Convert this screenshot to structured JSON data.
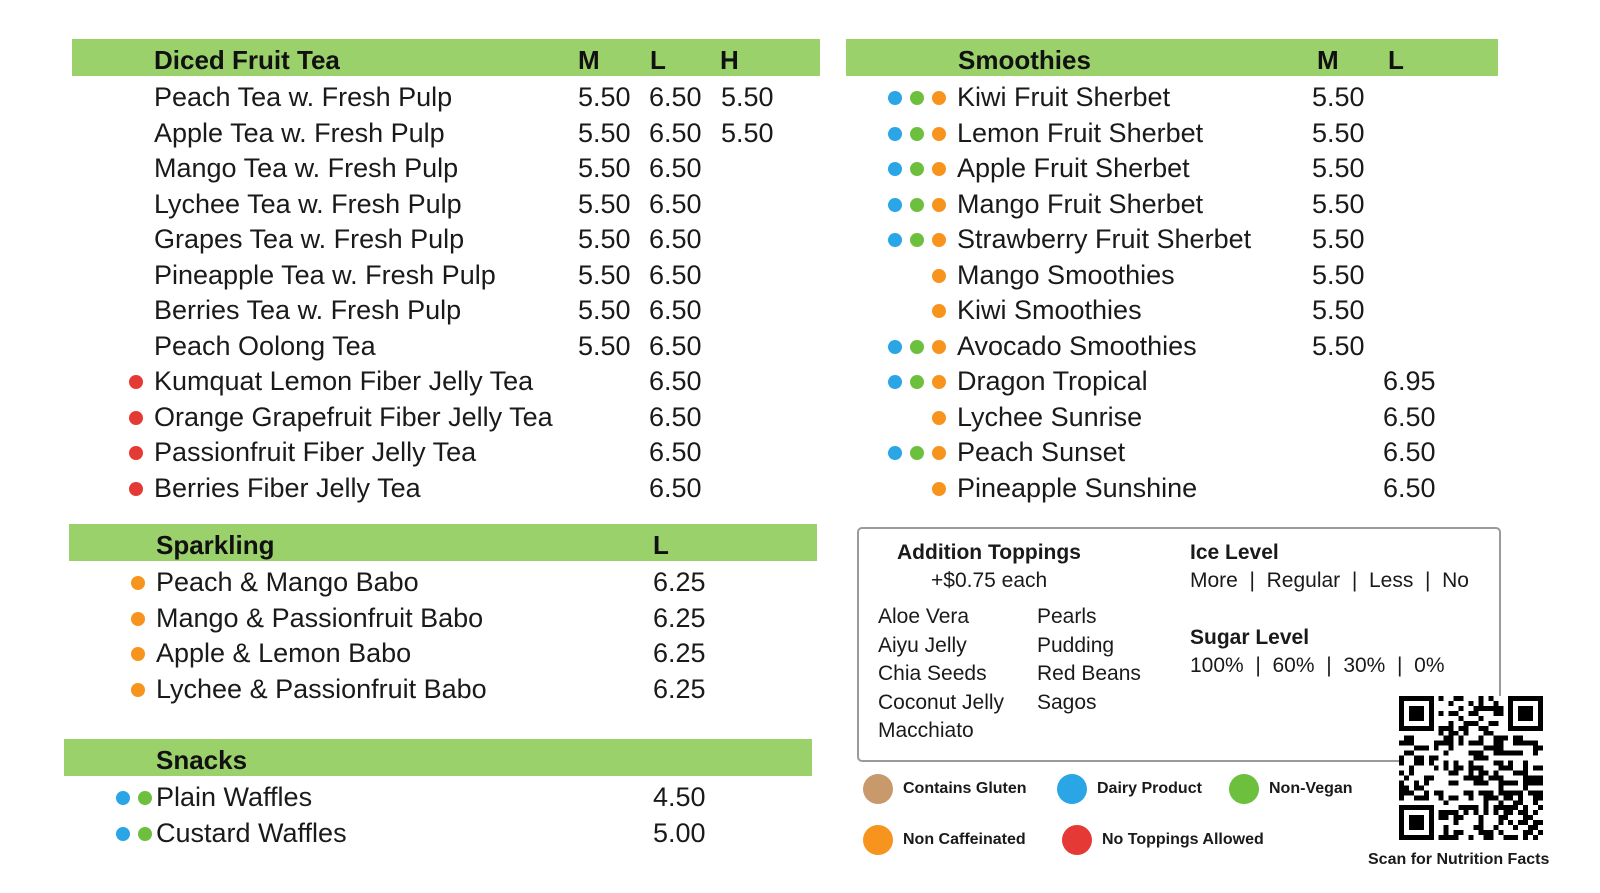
{
  "diced_fruit_tea": {
    "title": "Diced Fruit Tea",
    "columns": [
      "M",
      "L",
      "H"
    ],
    "items": [
      {
        "name": "Peach Tea w. Fresh Pulp",
        "m": "5.50",
        "l": "6.50",
        "h": "5.50",
        "dots": []
      },
      {
        "name": "Apple Tea w. Fresh Pulp",
        "m": "5.50",
        "l": "6.50",
        "h": "5.50",
        "dots": []
      },
      {
        "name": "Mango Tea w. Fresh Pulp",
        "m": "5.50",
        "l": "6.50",
        "h": "",
        "dots": []
      },
      {
        "name": "Lychee Tea w. Fresh Pulp",
        "m": "5.50",
        "l": "6.50",
        "h": "",
        "dots": []
      },
      {
        "name": "Grapes Tea w. Fresh Pulp",
        "m": "5.50",
        "l": "6.50",
        "h": "",
        "dots": []
      },
      {
        "name": "Pineapple Tea w. Fresh Pulp",
        "m": "5.50",
        "l": "6.50",
        "h": "",
        "dots": []
      },
      {
        "name": "Berries Tea w. Fresh Pulp",
        "m": "5.50",
        "l": "6.50",
        "h": "",
        "dots": []
      },
      {
        "name": "Peach Oolong Tea",
        "m": "5.50",
        "l": "6.50",
        "h": "",
        "dots": []
      },
      {
        "name": "Kumquat Lemon Fiber Jelly Tea",
        "m": "",
        "l": "6.50",
        "h": "",
        "dots": [
          "red"
        ]
      },
      {
        "name": "Orange Grapefruit Fiber Jelly Tea",
        "m": "",
        "l": "6.50",
        "h": "",
        "dots": [
          "red"
        ]
      },
      {
        "name": "Passionfruit Fiber Jelly Tea",
        "m": "",
        "l": "6.50",
        "h": "",
        "dots": [
          "red"
        ]
      },
      {
        "name": "Berries Fiber Jelly Tea",
        "m": "",
        "l": "6.50",
        "h": "",
        "dots": [
          "red"
        ]
      }
    ]
  },
  "sparkling": {
    "title": "Sparkling",
    "columns": [
      "L"
    ],
    "items": [
      {
        "name": "Peach & Mango Babo",
        "l": "6.25",
        "dots": [
          "orange"
        ]
      },
      {
        "name": "Mango & Passionfruit Babo",
        "l": "6.25",
        "dots": [
          "orange"
        ]
      },
      {
        "name": "Apple & Lemon Babo",
        "l": "6.25",
        "dots": [
          "orange"
        ]
      },
      {
        "name": "Lychee & Passionfruit Babo",
        "l": "6.25",
        "dots": [
          "orange"
        ]
      }
    ]
  },
  "snacks": {
    "title": "Snacks",
    "items": [
      {
        "name": "Plain Waffles",
        "price": "4.50",
        "dots": [
          "blue",
          "green"
        ]
      },
      {
        "name": "Custard Waffles",
        "price": "5.00",
        "dots": [
          "blue",
          "green"
        ]
      }
    ]
  },
  "smoothies": {
    "title": "Smoothies",
    "columns": [
      "M",
      "L"
    ],
    "items": [
      {
        "name": "Kiwi Fruit Sherbet",
        "m": "5.50",
        "l": "",
        "dots": [
          "blue",
          "green",
          "orange"
        ]
      },
      {
        "name": "Lemon Fruit Sherbet",
        "m": "5.50",
        "l": "",
        "dots": [
          "blue",
          "green",
          "orange"
        ]
      },
      {
        "name": "Apple Fruit Sherbet",
        "m": "5.50",
        "l": "",
        "dots": [
          "blue",
          "green",
          "orange"
        ]
      },
      {
        "name": "Mango Fruit Sherbet",
        "m": "5.50",
        "l": "",
        "dots": [
          "blue",
          "green",
          "orange"
        ]
      },
      {
        "name": "Strawberry Fruit Sherbet",
        "m": "5.50",
        "l": "",
        "dots": [
          "blue",
          "green",
          "orange"
        ]
      },
      {
        "name": "Mango Smoothies",
        "m": "5.50",
        "l": "",
        "dots": [
          "orange"
        ]
      },
      {
        "name": "Kiwi Smoothies",
        "m": "5.50",
        "l": "",
        "dots": [
          "orange"
        ]
      },
      {
        "name": "Avocado Smoothies",
        "m": "5.50",
        "l": "",
        "dots": [
          "blue",
          "green",
          "orange"
        ]
      },
      {
        "name": "Dragon Tropical",
        "m": "",
        "l": "6.95",
        "dots": [
          "blue",
          "green",
          "orange"
        ]
      },
      {
        "name": "Lychee Sunrise",
        "m": "",
        "l": "6.50",
        "dots": [
          "orange"
        ]
      },
      {
        "name": "Peach Sunset",
        "m": "",
        "l": "6.50",
        "dots": [
          "blue",
          "green",
          "orange"
        ]
      },
      {
        "name": "Pineapple Sunshine",
        "m": "",
        "l": "6.50",
        "dots": [
          "orange"
        ]
      }
    ]
  },
  "toppings_box": {
    "toppings_title": "Addition Toppings",
    "toppings_price": "+$0.75 each",
    "toppings_col1": [
      "Aloe Vera",
      "Aiyu Jelly",
      "Chia Seeds",
      "Coconut Jelly",
      "Macchiato"
    ],
    "toppings_col2": [
      "Pearls",
      "Pudding",
      "Red Beans",
      "Sagos"
    ],
    "ice_title": "Ice Level",
    "ice_options": "More  |  Regular  |  Less  |  No",
    "sugar_title": "Sugar Level",
    "sugar_options": "100%  |  60%  |  30%  |  0%"
  },
  "legend": [
    {
      "label": "Contains Gluten",
      "color": "tan"
    },
    {
      "label": "Dairy Product",
      "color": "blue"
    },
    {
      "label": "Non-Vegan",
      "color": "green"
    },
    {
      "label": "Non Caffeinated",
      "color": "orange"
    },
    {
      "label": "No Toppings Allowed",
      "color": "red"
    }
  ],
  "qr_caption": "Scan for Nutrition Facts",
  "colors": {
    "header_green": "#9bd16b",
    "dairy_blue": "#2aa6e6",
    "nonvegan_green": "#6dbf3e",
    "noncaffeinated_orange": "#f7941d",
    "notoppings_red": "#e53935",
    "gluten_tan": "#c8996a"
  }
}
